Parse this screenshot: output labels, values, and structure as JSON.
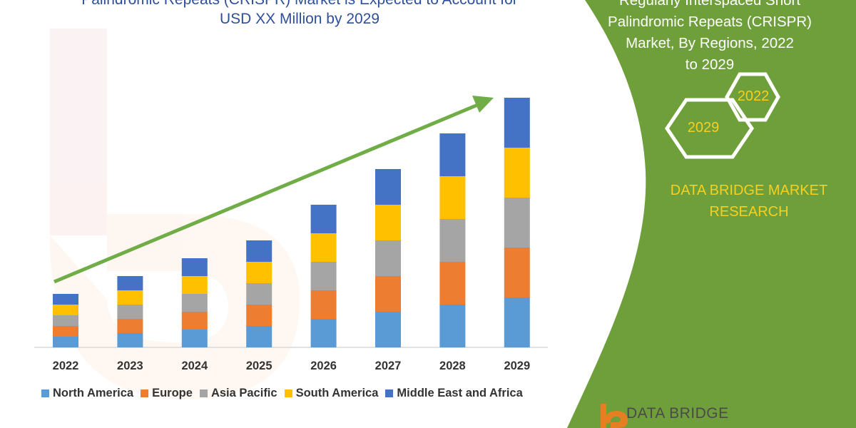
{
  "title": {
    "line1": "Palindromic Repeats (CRISPR) Market is Expected to Account for",
    "line2": "USD XX Million by 2029"
  },
  "side_panel": {
    "line1": "Regularly Interspaced Short",
    "line2": "Palindromic Repeats (CRISPR)",
    "line3": "Market, By Regions, 2022",
    "line4": "to 2029",
    "hex_start": "2029",
    "hex_end": "2022",
    "brand_line1": "DATA BRIDGE MARKET",
    "brand_line2": "RESEARCH",
    "footer_logo": "DATA BRIDGE",
    "panel_color": "#6f9f3a",
    "brand_color": "#f5d020"
  },
  "chart_data": {
    "type": "bar",
    "stacked": true,
    "categories": [
      "2022",
      "2023",
      "2024",
      "2025",
      "2026",
      "2027",
      "2028",
      "2029"
    ],
    "series": [
      {
        "name": "North America",
        "color": "#5b9bd5",
        "values": [
          15,
          20,
          25,
          30,
          40,
          50,
          60,
          70
        ]
      },
      {
        "name": "Europe",
        "color": "#ed7d31",
        "values": [
          15,
          20,
          25,
          30,
          40,
          50,
          60,
          70
        ]
      },
      {
        "name": "Asia Pacific",
        "color": "#a5a5a5",
        "values": [
          15,
          20,
          25,
          30,
          40,
          50,
          60,
          70
        ]
      },
      {
        "name": "South America",
        "color": "#ffc000",
        "values": [
          15,
          20,
          25,
          30,
          40,
          50,
          60,
          70
        ]
      },
      {
        "name": "Middle East and Africa",
        "color": "#4472c4",
        "values": [
          15,
          20,
          25,
          30,
          40,
          50,
          60,
          70
        ]
      }
    ],
    "ylim": [
      0,
      350
    ],
    "grid": false,
    "legend": "bottom",
    "trend_arrow_color": "#70ad47"
  }
}
